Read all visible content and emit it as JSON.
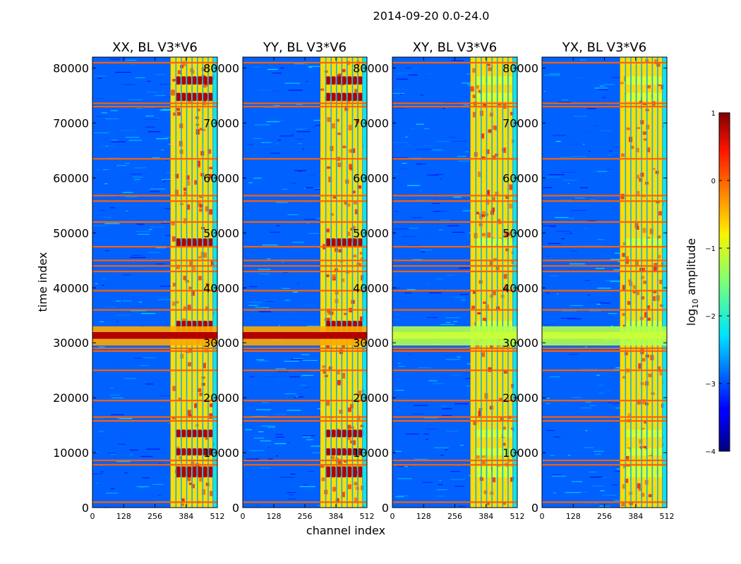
{
  "figure": {
    "suptitle": "2014-09-20 0.0-24.0",
    "xlabel": "channel index",
    "ylabel": "time index"
  },
  "chart_data": {
    "type": "heatmap",
    "title": "2014-09-20 0.0-24.0",
    "xlabel": "channel index",
    "ylabel": "time index",
    "xlim": [
      0,
      512
    ],
    "ylim": [
      0,
      82000
    ],
    "x_ticks": [
      0,
      128,
      256,
      384,
      512
    ],
    "y_ticks": [
      0,
      10000,
      20000,
      30000,
      40000,
      50000,
      60000,
      70000,
      80000
    ],
    "colorbar": {
      "label_prefix": "log",
      "label_sub": "10",
      "label_suffix": " amplitude",
      "range": [
        -4,
        1
      ],
      "ticks": [
        1,
        0,
        -1,
        -2,
        -3,
        -4
      ]
    },
    "panels": [
      {
        "title": "XX, BL V3*V6",
        "pol": "XX",
        "flare_intensity": 1.0
      },
      {
        "title": "YY, BL V3*V6",
        "pol": "YY",
        "flare_intensity": 1.0
      },
      {
        "title": "XY, BL V3*V6",
        "pol": "XY",
        "flare_intensity": 0.6
      },
      {
        "title": "YX, BL V3*V6",
        "pol": "YX",
        "flare_intensity": 0.6
      }
    ],
    "rfi_band_channels": [
      320,
      512
    ],
    "rfi_band_subchannels": [
      340,
      362,
      384,
      406,
      428,
      450,
      472
    ],
    "rfi_dark_gap_channels": [
      340,
      362,
      384,
      406,
      428,
      450,
      472,
      492
    ],
    "flare_time_range": [
      29500,
      33000
    ],
    "horizontal_rfi_rows": [
      1000,
      7800,
      8600,
      15800,
      16500,
      19500,
      25000,
      28500,
      29000,
      36000,
      39500,
      43000,
      44000,
      45000,
      47500,
      52000,
      55800,
      56800,
      63500,
      73000,
      73600,
      81000
    ],
    "bright_blocks_time": [
      [
        5500,
        7500
      ],
      [
        9500,
        10800
      ],
      [
        12800,
        14200
      ],
      [
        32000,
        34000
      ],
      [
        47500,
        49000
      ],
      [
        74000,
        75500
      ],
      [
        77000,
        78500
      ]
    ]
  }
}
